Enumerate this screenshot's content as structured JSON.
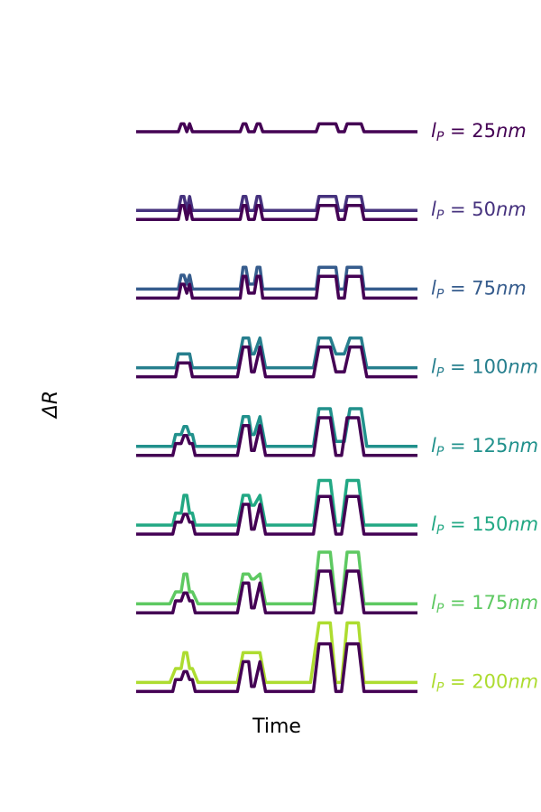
{
  "chart_data": {
    "type": "line",
    "title": "",
    "xlabel": "Time",
    "ylabel": "ΔR",
    "xlim": [
      0,
      100
    ],
    "grid": false,
    "legend": "right (label at end of each row)",
    "reference_color": "#440154",
    "rows": [
      {
        "label_sym": "l",
        "label_sub": "P",
        "label_val": " = 25",
        "label_unit": "nm",
        "color": "#440154",
        "reference": false,
        "x": [
          0,
          15,
          16,
          17,
          18,
          19,
          20,
          37,
          38,
          39,
          40,
          42,
          43,
          44,
          45,
          64,
          65,
          66,
          67,
          71,
          72,
          73,
          74,
          75,
          76,
          80,
          81,
          100
        ],
        "y": [
          0,
          0,
          0.08,
          0.08,
          0,
          0.08,
          0,
          0,
          0.08,
          0.08,
          0,
          0,
          0.08,
          0.08,
          0,
          0,
          0.08,
          0.08,
          0.08,
          0.08,
          0,
          0,
          0,
          0.08,
          0.08,
          0.08,
          0,
          0
        ]
      },
      {
        "label_sym": "l",
        "label_sub": "P",
        "label_val": " = 50",
        "label_unit": "nm",
        "color": "#46327e",
        "reference": true,
        "x": [
          0,
          15,
          16,
          17,
          18,
          19,
          20,
          37,
          38,
          39,
          40,
          42,
          43,
          44,
          45,
          64,
          65,
          66,
          67,
          71,
          72,
          73,
          74,
          75,
          76,
          80,
          81,
          100
        ],
        "y": [
          0,
          0,
          0.14,
          0.14,
          0,
          0.14,
          0,
          0,
          0.14,
          0.14,
          0,
          0,
          0.14,
          0.14,
          0,
          0,
          0.14,
          0.14,
          0.14,
          0.14,
          0,
          0,
          0,
          0.14,
          0.14,
          0.14,
          0,
          0
        ]
      },
      {
        "label_sym": "l",
        "label_sub": "P",
        "label_val": " = 75",
        "label_unit": "nm",
        "color": "#365c8d",
        "reference": true,
        "x": [
          0,
          15,
          16,
          17,
          18,
          19,
          20,
          37,
          38,
          39,
          40,
          42,
          43,
          44,
          45,
          64,
          65,
          66,
          67,
          71,
          72,
          73,
          74,
          75,
          76,
          80,
          81,
          100
        ],
        "y": [
          0,
          0,
          0.14,
          0.14,
          0.05,
          0.14,
          0,
          0,
          0.22,
          0.22,
          0.05,
          0.05,
          0.22,
          0.22,
          0,
          0,
          0.22,
          0.22,
          0.22,
          0.22,
          0,
          0,
          0,
          0.22,
          0.22,
          0.22,
          0,
          0
        ]
      },
      {
        "label_sym": "l",
        "label_sub": "P",
        "label_val": " = 100",
        "label_unit": "nm",
        "color": "#277f8e",
        "reference": true,
        "x": [
          0,
          14,
          15,
          19,
          20,
          36,
          38,
          40,
          41,
          42,
          44,
          46,
          63,
          65,
          66,
          67,
          69,
          71,
          74,
          76,
          77,
          78,
          80,
          82,
          100
        ],
        "y": [
          0,
          0,
          0.14,
          0.14,
          0,
          0,
          0.3,
          0.3,
          0.14,
          0.14,
          0.3,
          0,
          0,
          0.3,
          0.3,
          0.3,
          0.3,
          0.14,
          0.14,
          0.3,
          0.3,
          0.3,
          0.3,
          0,
          0
        ]
      },
      {
        "label_sym": "l",
        "label_sub": "P",
        "label_val": " = 125",
        "label_unit": "nm",
        "color": "#21918c",
        "reference": true,
        "x": [
          0,
          13,
          14,
          16,
          17,
          18,
          19,
          20,
          21,
          36,
          38,
          40,
          41,
          42,
          44,
          46,
          63,
          65,
          66,
          67,
          69,
          71,
          74,
          76,
          77,
          78,
          80,
          82,
          100
        ],
        "y": [
          0,
          0,
          0.12,
          0.12,
          0.2,
          0.2,
          0.12,
          0.12,
          0,
          0,
          0.3,
          0.3,
          0.12,
          0.12,
          0.3,
          0,
          0,
          0.38,
          0.38,
          0.38,
          0.38,
          0.05,
          0.05,
          0.38,
          0.38,
          0.38,
          0.38,
          0,
          0
        ]
      },
      {
        "label_sym": "l",
        "label_sub": "P",
        "label_val": " = 150",
        "label_unit": "nm",
        "color": "#22a884",
        "reference": true,
        "x": [
          0,
          13,
          14,
          16,
          17,
          18,
          19,
          20,
          21,
          36,
          38,
          40,
          41,
          42,
          44,
          46,
          63,
          65,
          67,
          69,
          71,
          73,
          75,
          77,
          79,
          81,
          100
        ],
        "y": [
          0,
          0,
          0.12,
          0.12,
          0.3,
          0.3,
          0.12,
          0.12,
          0,
          0,
          0.3,
          0.3,
          0.2,
          0.2,
          0.3,
          0,
          0,
          0.45,
          0.45,
          0.45,
          0,
          0,
          0.45,
          0.45,
          0.45,
          0,
          0
        ]
      },
      {
        "label_sym": "l",
        "label_sub": "P",
        "label_val": " = 175",
        "label_unit": "nm",
        "color": "#5ec962",
        "reference": true,
        "x": [
          0,
          12,
          14,
          16,
          17,
          18,
          19,
          20,
          22,
          36,
          38,
          40,
          41,
          42,
          44,
          46,
          63,
          65,
          67,
          69,
          71,
          73,
          75,
          77,
          79,
          81,
          100
        ],
        "y": [
          0,
          0,
          0.12,
          0.12,
          0.3,
          0.3,
          0.12,
          0.12,
          0,
          0,
          0.3,
          0.3,
          0.25,
          0.25,
          0.3,
          0,
          0,
          0.52,
          0.52,
          0.52,
          0,
          0,
          0.52,
          0.52,
          0.52,
          0,
          0
        ]
      },
      {
        "label_sym": "l",
        "label_sub": "P",
        "label_val": " = 200",
        "label_unit": "nm",
        "color": "#addc30",
        "reference": true,
        "x": [
          0,
          12,
          14,
          16,
          17,
          18,
          19,
          20,
          22,
          36,
          38,
          40,
          42,
          44,
          46,
          62,
          65,
          67,
          69,
          71,
          73,
          75,
          77,
          79,
          81,
          100
        ],
        "y": [
          0,
          0,
          0.14,
          0.14,
          0.3,
          0.3,
          0.14,
          0.14,
          0,
          0,
          0.3,
          0.3,
          0.3,
          0.3,
          0,
          0,
          0.6,
          0.6,
          0.6,
          0,
          0,
          0.6,
          0.6,
          0.6,
          0,
          0
        ]
      }
    ],
    "reference_shapes": {
      "50": {
        "x": [
          0,
          15,
          16,
          17,
          18,
          19,
          20,
          37,
          38,
          39,
          40,
          42,
          43,
          44,
          45,
          64,
          65,
          66,
          67,
          71,
          72,
          73,
          74,
          75,
          76,
          80,
          81,
          100
        ],
        "y": [
          0,
          0,
          0.14,
          0.14,
          0,
          0.14,
          0,
          0,
          0.14,
          0.14,
          0,
          0,
          0.14,
          0.14,
          0,
          0,
          0.14,
          0.14,
          0.14,
          0.14,
          0,
          0,
          0,
          0.14,
          0.14,
          0.14,
          0,
          0
        ]
      },
      "75": {
        "x": [
          0,
          15,
          16,
          17,
          18,
          19,
          20,
          37,
          38,
          39,
          40,
          42,
          43,
          44,
          45,
          64,
          65,
          66,
          67,
          71,
          72,
          73,
          74,
          75,
          76,
          80,
          81,
          100
        ],
        "y": [
          0,
          0,
          0.14,
          0.14,
          0.05,
          0.14,
          0,
          0,
          0.22,
          0.22,
          0.05,
          0.05,
          0.22,
          0.22,
          0,
          0,
          0.22,
          0.22,
          0.22,
          0.22,
          0,
          0,
          0,
          0.22,
          0.22,
          0.22,
          0,
          0
        ]
      },
      "100": {
        "x": [
          0,
          14,
          15,
          19,
          20,
          36,
          38,
          40,
          41,
          42,
          44,
          46,
          63,
          65,
          67,
          69,
          71,
          74,
          76,
          78,
          80,
          82,
          100
        ],
        "y": [
          0,
          0,
          0.14,
          0.14,
          0,
          0,
          0.3,
          0.3,
          0.05,
          0.05,
          0.3,
          0,
          0,
          0.3,
          0.3,
          0.3,
          0.05,
          0.05,
          0.3,
          0.3,
          0.3,
          0,
          0
        ]
      },
      "125": {
        "x": [
          0,
          13,
          14,
          16,
          17,
          18,
          19,
          20,
          21,
          36,
          38,
          40,
          41,
          42,
          44,
          46,
          63,
          65,
          67,
          69,
          71,
          73,
          75,
          77,
          79,
          81,
          100
        ],
        "y": [
          0,
          0,
          0.12,
          0.12,
          0.2,
          0.2,
          0.12,
          0.12,
          0,
          0,
          0.3,
          0.3,
          0.05,
          0.05,
          0.3,
          0,
          0,
          0.38,
          0.38,
          0.38,
          0,
          0,
          0.38,
          0.38,
          0.38,
          0,
          0
        ]
      },
      "150": {
        "x": [
          0,
          13,
          14,
          16,
          17,
          18,
          19,
          20,
          21,
          36,
          38,
          40,
          41,
          42,
          44,
          46,
          63,
          65,
          67,
          69,
          71,
          73,
          75,
          77,
          79,
          81,
          100
        ],
        "y": [
          0,
          0,
          0.12,
          0.12,
          0.2,
          0.2,
          0.12,
          0.12,
          0,
          0,
          0.3,
          0.3,
          0.05,
          0.05,
          0.3,
          0,
          0,
          0.38,
          0.38,
          0.38,
          0,
          0,
          0.38,
          0.38,
          0.38,
          0,
          0
        ]
      },
      "175": {
        "x": [
          0,
          13,
          14,
          16,
          17,
          18,
          19,
          20,
          21,
          36,
          38,
          40,
          41,
          42,
          44,
          46,
          63,
          65,
          67,
          69,
          71,
          73,
          75,
          77,
          79,
          81,
          100
        ],
        "y": [
          0,
          0,
          0.12,
          0.12,
          0.2,
          0.2,
          0.12,
          0.12,
          0,
          0,
          0.3,
          0.3,
          0.05,
          0.05,
          0.3,
          0,
          0,
          0.42,
          0.42,
          0.42,
          0,
          0,
          0.42,
          0.42,
          0.42,
          0,
          0
        ]
      },
      "200": {
        "x": [
          0,
          13,
          14,
          16,
          17,
          18,
          19,
          20,
          21,
          36,
          38,
          40,
          41,
          42,
          44,
          46,
          63,
          65,
          67,
          69,
          71,
          73,
          75,
          77,
          79,
          81,
          100
        ],
        "y": [
          0,
          0,
          0.12,
          0.12,
          0.2,
          0.2,
          0.12,
          0.12,
          0,
          0,
          0.3,
          0.3,
          0.05,
          0.05,
          0.3,
          0,
          0,
          0.48,
          0.48,
          0.48,
          0,
          0,
          0.48,
          0.48,
          0.48,
          0,
          0
        ]
      }
    }
  }
}
